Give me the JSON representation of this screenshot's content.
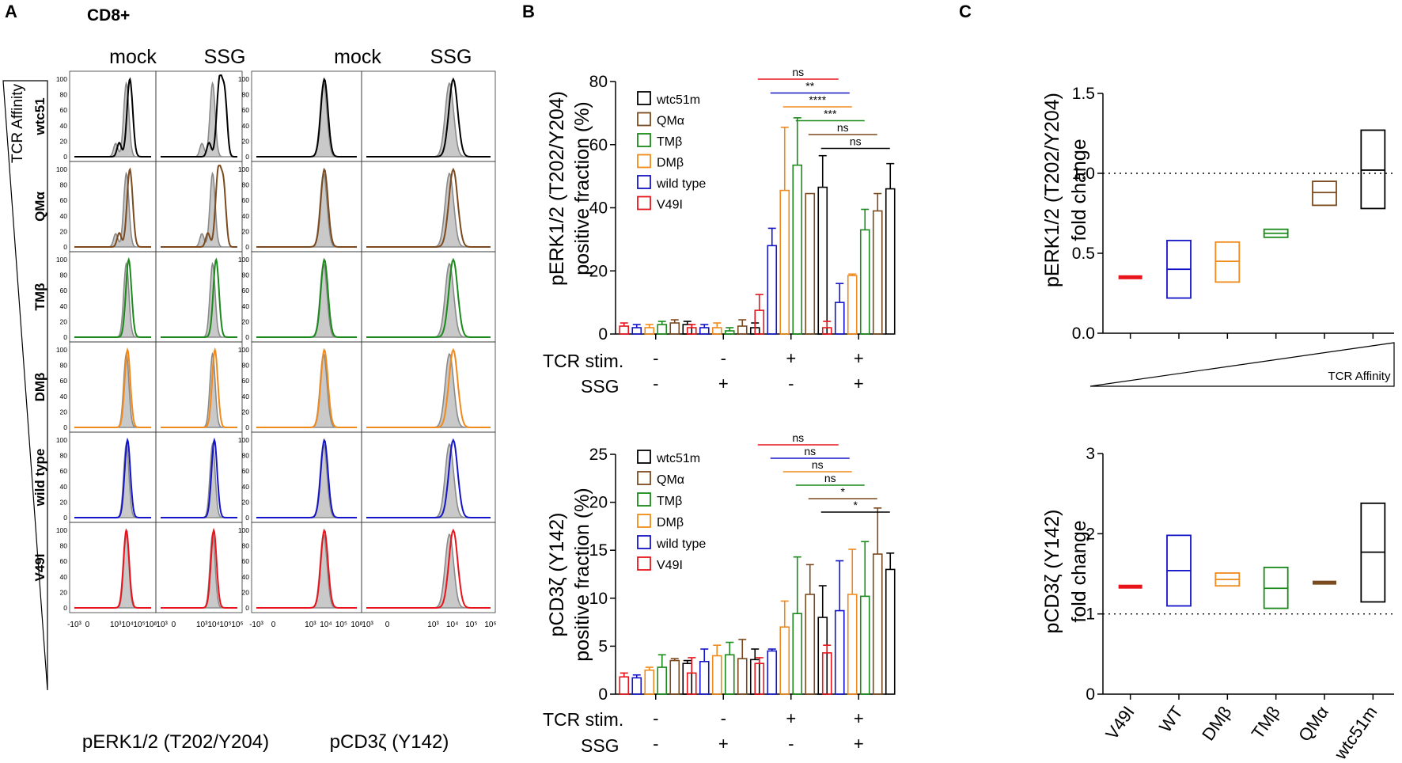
{
  "panels": {
    "A": "A",
    "B": "B",
    "C": "C"
  },
  "panelA": {
    "cell_label": "CD8+",
    "axis_label_left": "TCR Affinity",
    "erk": {
      "title": "pERK1/2 (T202/Y204)",
      "col_labels": [
        "mock",
        "SSG"
      ],
      "rows": [
        {
          "name": "wtc51",
          "color": "#000000",
          "mock_peak": 4.2,
          "ssg_peak": 4.5
        },
        {
          "name": "QMα",
          "color": "#7b4a1e",
          "mock_peak": 4.2,
          "ssg_peak": 4.4
        },
        {
          "name": "TMβ",
          "color": "#1a8a1a",
          "mock_peak": 4.1,
          "ssg_peak": 4.2
        },
        {
          "name": "DMβ",
          "color": "#f08a1c",
          "mock_peak": 4.0,
          "ssg_peak": 4.1
        },
        {
          "name": "wild type",
          "color": "#1414c8",
          "mock_peak": 4.0,
          "ssg_peak": 4.05
        },
        {
          "name": "V49I",
          "color": "#e8141c",
          "mock_peak": 3.9,
          "ssg_peak": 4.0
        }
      ]
    },
    "cd3": {
      "title": "pCD3ζ (Y142)",
      "col_labels": [
        "mock",
        "SSG"
      ]
    },
    "y_ticks": [
      "0",
      "20",
      "40",
      "60",
      "80",
      "100"
    ],
    "x_ticks": [
      "-10³",
      "0",
      "10³",
      "10⁴",
      "10⁵",
      "10⁶"
    ]
  },
  "panelB_top": {
    "ylabel1": "pERK1/2 (T202/Y204)",
    "ylabel2": "positive fraction (%)",
    "yticks": [
      "0",
      "20",
      "40",
      "60",
      "80"
    ],
    "legend": [
      "wtc51m",
      "QMα",
      "TMβ",
      "DMβ",
      "wild type",
      "V49I"
    ],
    "legend_colors": [
      "#000000",
      "#7b4a1e",
      "#1a8a1a",
      "#f08a1c",
      "#1414c8",
      "#e8141c"
    ],
    "row1_label": "TCR stim.",
    "row2_label": "SSG",
    "tcr": [
      "-",
      "-",
      "+",
      "+"
    ],
    "ssg": [
      "-",
      "+",
      "-",
      "+"
    ],
    "sig": [
      "ns",
      "**",
      "****",
      "***",
      "ns",
      "ns"
    ]
  },
  "panelB_bottom": {
    "ylabel1": "pCD3ζ  (Y142)",
    "ylabel2": "positive fraction (%)",
    "yticks": [
      "0",
      "5",
      "10",
      "15",
      "20",
      "25"
    ],
    "legend": [
      "wtc51m",
      "QMα",
      "TMβ",
      "DMβ",
      "wild type",
      "V49I"
    ],
    "row1_label": "TCR stim.",
    "row2_label": "SSG",
    "tcr": [
      "-",
      "-",
      "+",
      "+"
    ],
    "ssg": [
      "-",
      "+",
      "-",
      "+"
    ],
    "sig": [
      "ns",
      "ns",
      "ns",
      "ns",
      "*",
      "*"
    ]
  },
  "panelC_top": {
    "ylabel1": "pERK1/2 (T202/Y204)",
    "ylabel2": "fold change",
    "yticks": [
      "0.0",
      "0.5",
      "1.0",
      "1.5"
    ],
    "affinity_label": "TCR Affinity"
  },
  "panelC_bottom": {
    "ylabel1": "pCD3ζ  (Y142)",
    "ylabel2": "fold change",
    "yticks": [
      "0",
      "1",
      "2",
      "3"
    ],
    "categories": [
      "V49I",
      "WT",
      "DMβ",
      "TMβ",
      "QMα",
      "wtc51m"
    ]
  },
  "chart_data": [
    {
      "type": "bar",
      "title": "pERK1/2 (T202/Y204) positive fraction (%)",
      "ylabel": "pERK1/2 (T202/Y204) positive fraction (%)",
      "ylim": [
        0,
        80
      ],
      "groups": [
        "TCR- SSG-",
        "TCR- SSG+",
        "TCR+ SSG-",
        "TCR+ SSG+"
      ],
      "series": [
        {
          "name": "V49I",
          "color": "#e8141c",
          "values": [
            2.5,
            2,
            7.5,
            2
          ],
          "errors": [
            1,
            1,
            5,
            2
          ]
        },
        {
          "name": "wild type",
          "color": "#1414c8",
          "values": [
            2,
            2,
            28,
            10
          ],
          "errors": [
            1,
            1,
            5.5,
            6
          ]
        },
        {
          "name": "DMβ",
          "color": "#f08a1c",
          "values": [
            2,
            2,
            45.5,
            18.5
          ],
          "errors": [
            1,
            1.5,
            20,
            0.5
          ]
        },
        {
          "name": "TMβ",
          "color": "#1a8a1a",
          "values": [
            3,
            1,
            53.5,
            33
          ],
          "errors": [
            1,
            1,
            15,
            6.5
          ]
        },
        {
          "name": "QMα",
          "color": "#7b4a1e",
          "values": [
            3.5,
            2.5,
            44.5,
            39
          ],
          "errors": [
            1,
            2,
            0,
            5.5
          ]
        },
        {
          "name": "wtc51m",
          "color": "#000000",
          "values": [
            3,
            2,
            46.5,
            46
          ],
          "errors": [
            1,
            1.5,
            10,
            8
          ]
        }
      ],
      "significance": [
        {
          "label": "ns",
          "color": "#e8141c"
        },
        {
          "label": "**",
          "color": "#1414c8"
        },
        {
          "label": "****",
          "color": "#f08a1c"
        },
        {
          "label": "***",
          "color": "#1a8a1a"
        },
        {
          "label": "ns",
          "color": "#7b4a1e"
        },
        {
          "label": "ns",
          "color": "#000000"
        }
      ]
    },
    {
      "type": "bar",
      "title": "pCD3ζ (Y142) positive fraction (%)",
      "ylabel": "pCD3ζ (Y142) positive fraction (%)",
      "ylim": [
        0,
        25
      ],
      "groups": [
        "TCR- SSG-",
        "TCR- SSG+",
        "TCR+ SSG-",
        "TCR+ SSG+"
      ],
      "series": [
        {
          "name": "V49I",
          "color": "#e8141c",
          "values": [
            1.8,
            2.2,
            3.2,
            4.3
          ],
          "errors": [
            0.4,
            1.6,
            0.6,
            0.8
          ]
        },
        {
          "name": "wild type",
          "color": "#1414c8",
          "values": [
            1.7,
            3.4,
            4.5,
            8.7
          ],
          "errors": [
            0.3,
            1.3,
            0.2,
            5.2
          ]
        },
        {
          "name": "DMβ",
          "color": "#f08a1c",
          "values": [
            2.5,
            4,
            7,
            10.4
          ],
          "errors": [
            0.3,
            1.1,
            2.7,
            4.7
          ]
        },
        {
          "name": "TMβ",
          "color": "#1a8a1a",
          "values": [
            2.8,
            4.1,
            8.4,
            10.2
          ],
          "errors": [
            1.3,
            1.3,
            5.9,
            5.7
          ]
        },
        {
          "name": "QMα",
          "color": "#7b4a1e",
          "values": [
            3.5,
            3.7,
            10.4,
            14.6
          ],
          "errors": [
            0.2,
            2,
            3.1,
            4.8
          ]
        },
        {
          "name": "wtc51m",
          "color": "#000000",
          "values": [
            3.2,
            3.6,
            8,
            13
          ],
          "errors": [
            0.3,
            1.1,
            3.3,
            1.7
          ]
        }
      ],
      "significance": [
        {
          "label": "ns",
          "color": "#e8141c"
        },
        {
          "label": "ns",
          "color": "#1414c8"
        },
        {
          "label": "ns",
          "color": "#f08a1c"
        },
        {
          "label": "ns",
          "color": "#1a8a1a"
        },
        {
          "label": "*",
          "color": "#7b4a1e"
        },
        {
          "label": "*",
          "color": "#000000"
        }
      ]
    },
    {
      "type": "box",
      "title": "pERK1/2 (T202/Y204) fold change",
      "ylabel": "pERK1/2 (T202/Y204) fold change",
      "ylim": [
        0,
        1.5
      ],
      "reference_line": 1.0,
      "categories": [
        "V49I",
        "WT",
        "DMβ",
        "TMβ",
        "QMα",
        "wtc51m"
      ],
      "series": [
        {
          "name": "V49I",
          "color": "#e8141c",
          "min": 0.34,
          "mean": 0.35,
          "max": 0.36
        },
        {
          "name": "WT",
          "color": "#1414c8",
          "min": 0.22,
          "mean": 0.4,
          "max": 0.58
        },
        {
          "name": "DMβ",
          "color": "#f08a1c",
          "min": 0.32,
          "mean": 0.45,
          "max": 0.57
        },
        {
          "name": "TMβ",
          "color": "#1a8a1a",
          "min": 0.6,
          "mean": 0.625,
          "max": 0.65
        },
        {
          "name": "QMα",
          "color": "#7b4a1e",
          "min": 0.8,
          "mean": 0.88,
          "max": 0.95
        },
        {
          "name": "wtc51m",
          "color": "#000000",
          "min": 0.78,
          "mean": 1.02,
          "max": 1.27
        }
      ]
    },
    {
      "type": "box",
      "title": "pCD3ζ (Y142) fold change",
      "ylabel": "pCD3ζ (Y142) fold change",
      "ylim": [
        0,
        3
      ],
      "reference_line": 1.0,
      "categories": [
        "V49I",
        "WT",
        "DMβ",
        "TMβ",
        "QMα",
        "wtc51m"
      ],
      "series": [
        {
          "name": "V49I",
          "color": "#e8141c",
          "min": 1.33,
          "mean": 1.34,
          "max": 1.35
        },
        {
          "name": "WT",
          "color": "#1414c8",
          "min": 1.1,
          "mean": 1.54,
          "max": 1.98
        },
        {
          "name": "DMβ",
          "color": "#f08a1c",
          "min": 1.35,
          "mean": 1.43,
          "max": 1.51
        },
        {
          "name": "TMβ",
          "color": "#1a8a1a",
          "min": 1.07,
          "mean": 1.32,
          "max": 1.58
        },
        {
          "name": "QMα",
          "color": "#7b4a1e",
          "min": 1.37,
          "mean": 1.39,
          "max": 1.41
        },
        {
          "name": "wtc51m",
          "color": "#000000",
          "min": 1.15,
          "mean": 1.77,
          "max": 2.38
        }
      ]
    }
  ]
}
